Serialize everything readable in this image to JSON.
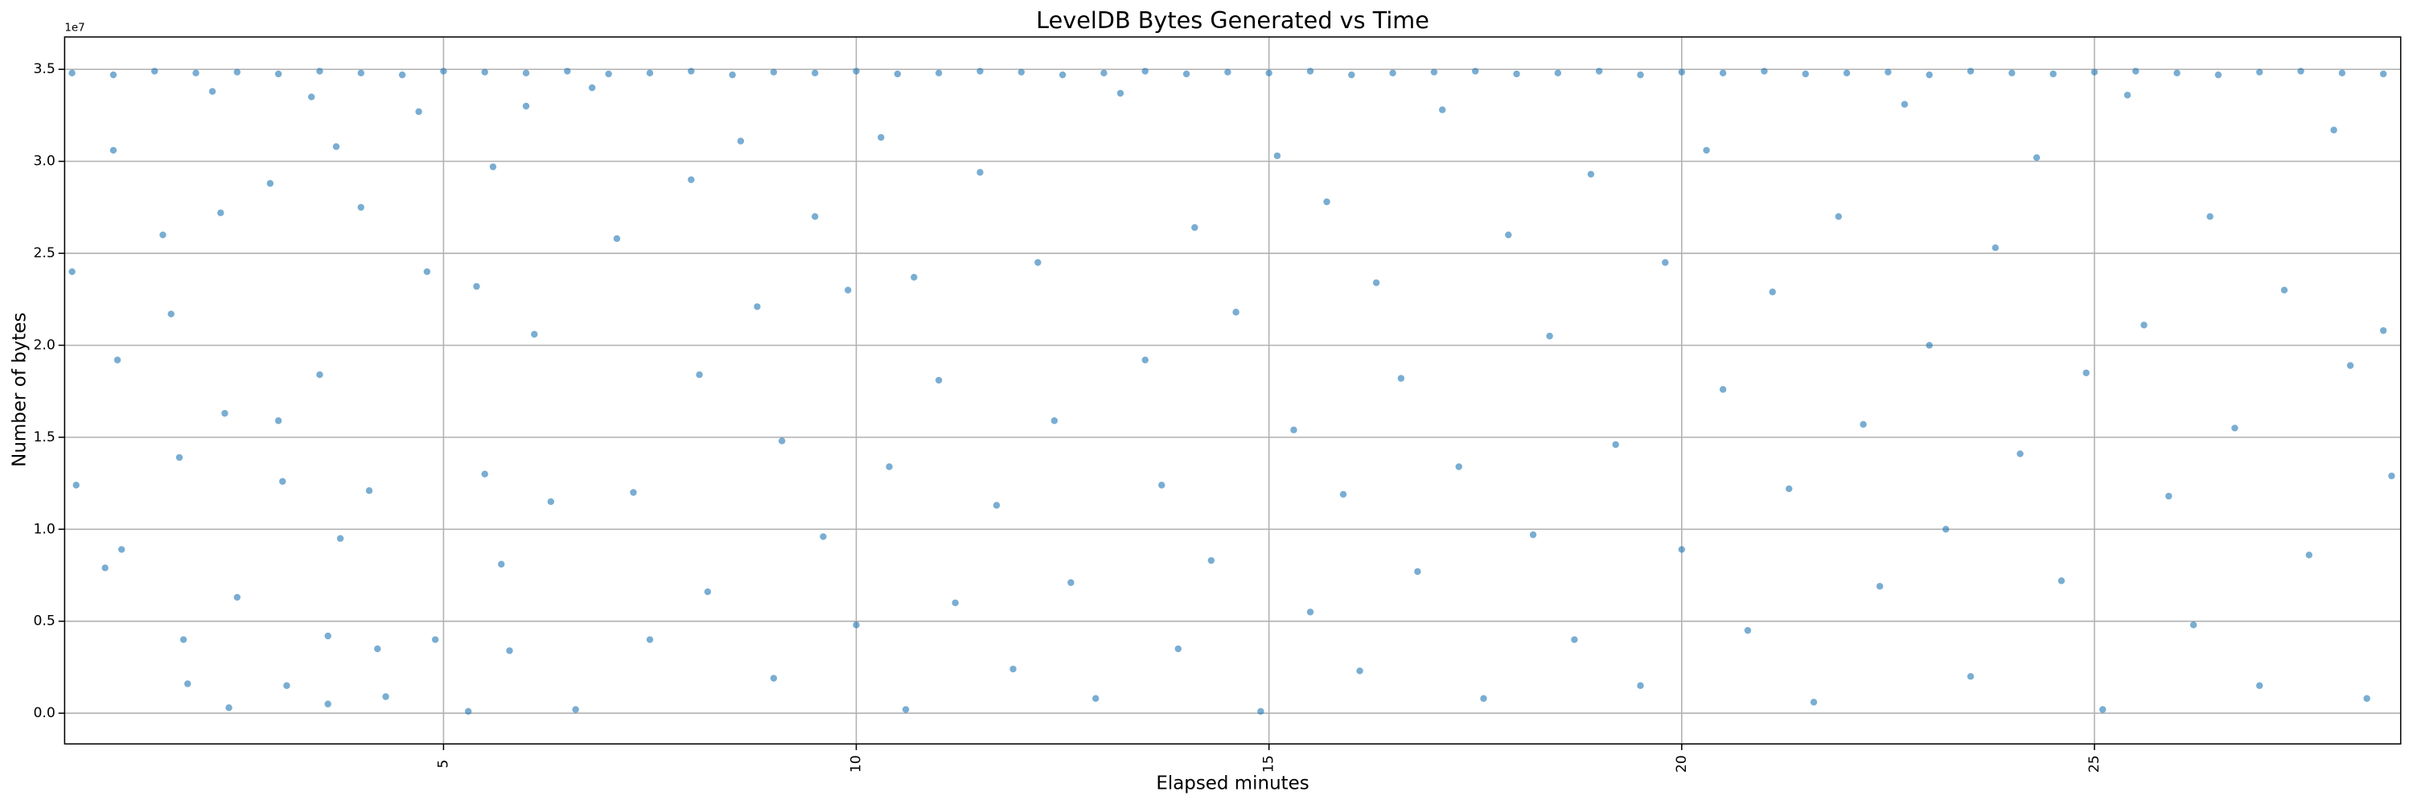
{
  "chart_data": {
    "type": "scatter",
    "title": "LevelDB Bytes Generated vs Time",
    "x_label": "Elapsed minutes",
    "y_label": "Number of bytes",
    "offset_label": "1e7",
    "color": "#1f77b4",
    "grid": true,
    "xlim": [
      0.41,
      28.71
    ],
    "ylim": [
      -1670000,
      36760000
    ],
    "xticks": [
      5,
      10,
      15,
      20,
      25
    ],
    "yticks": [
      {
        "value": 0,
        "label": "0.0"
      },
      {
        "value": 5000000,
        "label": "0.5"
      },
      {
        "value": 10000000,
        "label": "1.0"
      },
      {
        "value": 15000000,
        "label": "1.5"
      },
      {
        "value": 20000000,
        "label": "2.0"
      },
      {
        "value": 25000000,
        "label": "2.5"
      },
      {
        "value": 30000000,
        "label": "3.0"
      },
      {
        "value": 35000000,
        "label": "3.5"
      }
    ],
    "x": [
      0.5,
      1.0,
      1.5,
      2.0,
      2.5,
      3.0,
      3.5,
      4.0,
      4.5,
      5.0,
      5.5,
      6.0,
      6.5,
      7.0,
      7.5,
      8.0,
      8.5,
      9.0,
      9.5,
      10.0,
      10.5,
      11.0,
      11.5,
      12.0,
      12.5,
      13.0,
      13.5,
      14.0,
      14.5,
      15.0,
      15.5,
      16.0,
      16.5,
      17.0,
      17.5,
      18.0,
      18.5,
      19.0,
      19.5,
      20.0,
      20.5,
      21.0,
      21.5,
      22.0,
      22.5,
      23.0,
      23.5,
      24.0,
      24.5,
      25.0,
      25.5,
      26.0,
      26.5,
      27.0,
      27.5,
      28.0,
      28.5,
      0.5,
      0.55,
      0.9,
      1.0,
      1.05,
      1.1,
      1.6,
      1.7,
      1.8,
      1.85,
      1.9,
      2.2,
      2.3,
      2.35,
      2.4,
      2.5,
      2.9,
      3.0,
      3.05,
      3.1,
      3.4,
      3.5,
      3.6,
      3.6,
      3.7,
      3.75,
      4.0,
      4.1,
      4.2,
      4.3,
      4.7,
      4.8,
      4.9,
      5.3,
      5.4,
      5.5,
      5.6,
      5.7,
      5.8,
      6.0,
      6.1,
      6.3,
      6.6,
      6.8,
      7.1,
      7.3,
      7.5,
      8.0,
      8.1,
      8.2,
      8.6,
      8.8,
      9.0,
      9.1,
      9.5,
      9.6,
      9.9,
      10.0,
      10.3,
      10.4,
      10.6,
      10.7,
      11.0,
      11.2,
      11.5,
      11.7,
      11.9,
      12.2,
      12.4,
      12.6,
      12.9,
      13.2,
      13.5,
      13.7,
      13.9,
      14.1,
      14.3,
      14.6,
      14.9,
      15.1,
      15.3,
      15.5,
      15.7,
      15.9,
      16.1,
      16.3,
      16.6,
      16.8,
      17.1,
      17.3,
      17.6,
      17.9,
      18.2,
      18.4,
      18.7,
      18.9,
      19.2,
      19.5,
      19.8,
      20.0,
      20.3,
      20.5,
      20.8,
      21.1,
      21.3,
      21.6,
      21.9,
      22.2,
      22.4,
      22.7,
      23.0,
      23.2,
      23.5,
      23.8,
      24.1,
      24.3,
      24.6,
      24.9,
      25.1,
      25.4,
      25.6,
      25.9,
      26.2,
      26.4,
      26.7,
      27.0,
      27.3,
      27.6,
      27.9,
      28.1,
      28.3,
      28.5,
      28.6
    ],
    "values": [
      34800000,
      34700000,
      34900000,
      34800000,
      34850000,
      34750000,
      34900000,
      34800000,
      34700000,
      34900000,
      34850000,
      34800000,
      34900000,
      34750000,
      34800000,
      34900000,
      34700000,
      34850000,
      34800000,
      34900000,
      34750000,
      34800000,
      34900000,
      34850000,
      34700000,
      34800000,
      34900000,
      34750000,
      34850000,
      34800000,
      34900000,
      34700000,
      34800000,
      34850000,
      34900000,
      34750000,
      34800000,
      34900000,
      34700000,
      34850000,
      34800000,
      34900000,
      34750000,
      34800000,
      34850000,
      34700000,
      34900000,
      34800000,
      34750000,
      34850000,
      34900000,
      34800000,
      34700000,
      34850000,
      34900000,
      34800000,
      34750000,
      24000000,
      12400000,
      7900000,
      30600000,
      19200000,
      8900000,
      26000000,
      21700000,
      13900000,
      4000000,
      1600000,
      33800000,
      27200000,
      16300000,
      300000,
      6300000,
      28800000,
      15900000,
      12600000,
      1500000,
      33500000,
      18400000,
      4200000,
      500000,
      30800000,
      9500000,
      27500000,
      12100000,
      3500000,
      900000,
      32700000,
      24000000,
      4000000,
      100000,
      23200000,
      13000000,
      29700000,
      8100000,
      3400000,
      33000000,
      20600000,
      11500000,
      200000,
      34000000,
      25800000,
      12000000,
      4000000,
      29000000,
      18400000,
      6600000,
      31100000,
      22100000,
      1900000,
      14800000,
      27000000,
      9600000,
      23000000,
      4800000,
      31300000,
      13400000,
      200000,
      23700000,
      18100000,
      6000000,
      29400000,
      11300000,
      2400000,
      24500000,
      15900000,
      7100000,
      800000,
      33700000,
      19200000,
      12400000,
      3500000,
      26400000,
      8300000,
      21800000,
      100000,
      30300000,
      15400000,
      5500000,
      27800000,
      11900000,
      2300000,
      23400000,
      18200000,
      7700000,
      32800000,
      13400000,
      800000,
      26000000,
      9700000,
      20500000,
      4000000,
      29300000,
      14600000,
      1500000,
      24500000,
      8900000,
      30600000,
      17600000,
      4500000,
      22900000,
      12200000,
      600000,
      27000000,
      15700000,
      6900000,
      33100000,
      20000000,
      10000000,
      2000000,
      25300000,
      14100000,
      30200000,
      7200000,
      18500000,
      200000,
      33600000,
      21100000,
      11800000,
      4800000,
      27000000,
      15500000,
      1500000,
      23000000,
      8600000,
      31700000,
      18900000,
      800000,
      20800000,
      12900000
    ]
  }
}
